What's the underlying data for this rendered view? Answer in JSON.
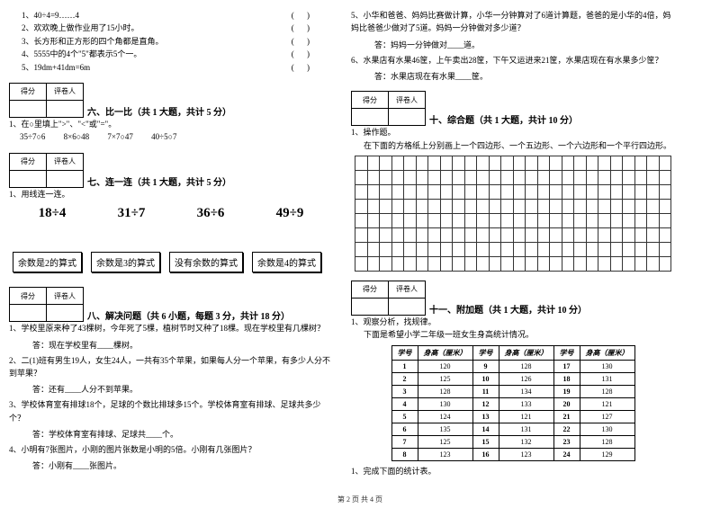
{
  "left": {
    "judge_items": [
      "1、40÷4=9……4",
      "2、欢欢晚上做作业用了15小时。",
      "3、长方形和正方形的四个角都是直角。",
      "4、5555中的4个\"5\"都表示5个一。",
      "5、19dm+41dm=6m"
    ],
    "bracket": "(        )",
    "score_header": [
      "得分",
      "评卷人"
    ],
    "sec6_title": "六、比一比（共 1 大题，共计 5 分）",
    "sec6_q1": "1、在○里填上\">\"、\"<\"或\"=\"。",
    "sec6_exprs": "35÷7○6    8×6○48    7×7○47    40÷5○7",
    "sec7_title": "七、连一连（共 1 大题，共计 5 分）",
    "sec7_q1": "1、用线连一连。",
    "sec7_big": [
      "18÷4",
      "31÷7",
      "36÷6",
      "49÷9"
    ],
    "sec7_boxes": [
      "余数是2的算式",
      "余数是3的算式",
      "没有余数的算式",
      "余数是4的算式"
    ],
    "sec8_title": "八、解决问题（共 6 小题，每题 3 分，共计 18 分）",
    "sec8_q1": "1、学校里原来种了43棵树，今年死了5棵，植树节时又种了18棵。现在学校里有几棵树？",
    "sec8_a1": "答：现在学校里有____棵树。",
    "sec8_q2": "2、二(1)班有男生19人，女生24人，一共有35个苹果，如果每人分一个苹果，有多少人分不到苹果？",
    "sec8_a2": "答：还有____人分不到苹果。",
    "sec8_q3": "3、学校体育室有排球18个，足球的个数比排球多15个。学校体育室有排球、足球共多少个？",
    "sec8_a3": "答：学校体育室有排球、足球共____个。",
    "sec8_q4": "4、小明有7张图片，小刚的图片张数是小明的5倍。小刚有几张图片？",
    "sec8_a4": "答：小刚有____张图片。"
  },
  "right": {
    "q5": "5、小华和爸爸、妈妈比赛做计算，小华一分钟算对了6道计算题，爸爸的是小华的4倍，妈妈比爸爸少做对了5道。妈妈一分钟做对多少道？",
    "a5": "答：妈妈一分钟做对____道。",
    "q6": "6、水果店有水果46筐，上午卖出28筐，下午又运进来21筐，水果店现在有水果多少筐？",
    "a6": "答：水果店现在有水果____筐。",
    "score_header": [
      "得分",
      "评卷人"
    ],
    "sec10_title": "十、综合题（共 1 大题，共计 10 分）",
    "sec10_q1": "1、操作题。",
    "sec10_q1b": "在下面的方格纸上分别画上一个四边形、一个五边形、一个六边形和一个平行四边形。",
    "sec11_title": "十一、附加题（共 1 大题，共计 10 分）",
    "sec11_q1": "1、观察分析，找规律。",
    "sec11_q1b": "下面是希望小学二年级一班女生身高统计情况。",
    "table": {
      "headers": [
        "学号",
        "身高（厘米）",
        "学号",
        "身高（厘米）",
        "学号",
        "身高（厘米）"
      ],
      "rows": [
        [
          "1",
          "120",
          "9",
          "128",
          "17",
          "130"
        ],
        [
          "2",
          "125",
          "10",
          "126",
          "18",
          "131"
        ],
        [
          "3",
          "128",
          "11",
          "134",
          "19",
          "128"
        ],
        [
          "4",
          "130",
          "12",
          "133",
          "20",
          "121"
        ],
        [
          "5",
          "124",
          "13",
          "121",
          "21",
          "127"
        ],
        [
          "6",
          "135",
          "14",
          "131",
          "22",
          "130"
        ],
        [
          "7",
          "125",
          "15",
          "132",
          "23",
          "128"
        ],
        [
          "8",
          "123",
          "16",
          "123",
          "24",
          "129"
        ]
      ]
    },
    "sec11_q2": "1、完成下面的统计表。"
  },
  "footer": "第 2 页 共 4 页"
}
